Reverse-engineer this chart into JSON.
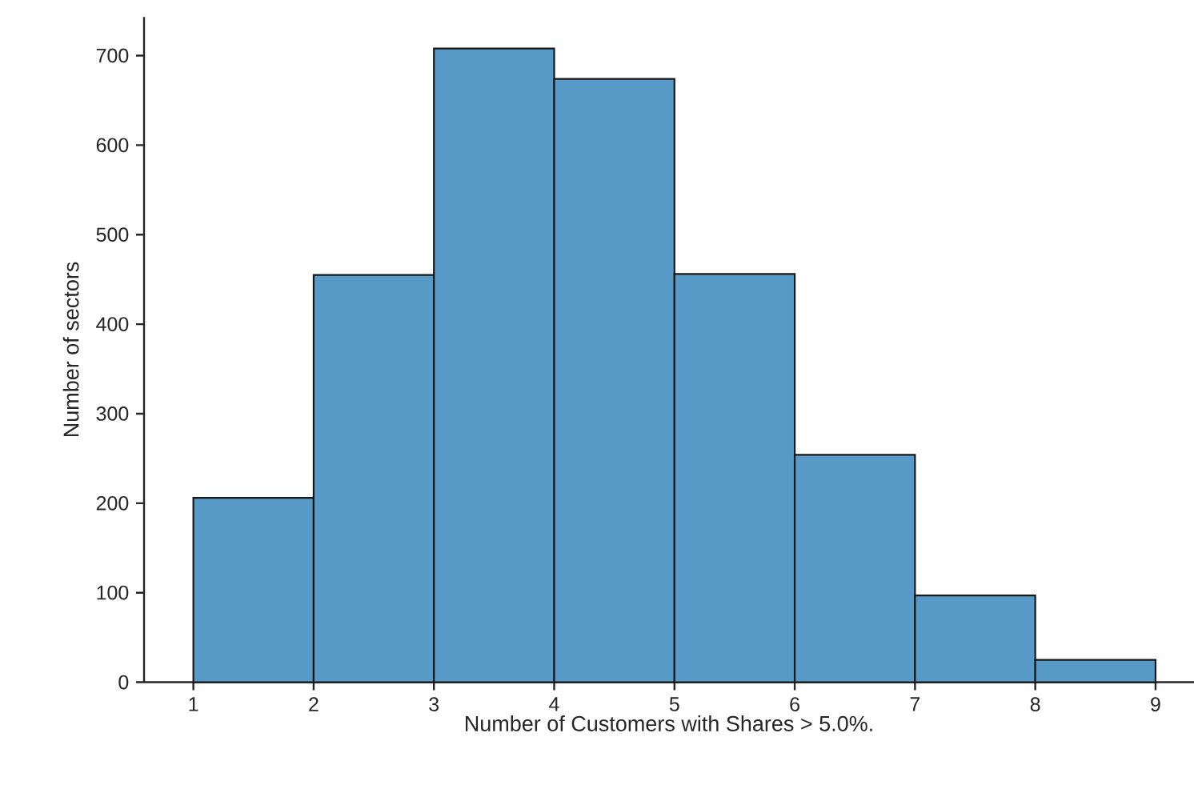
{
  "chart_data": {
    "type": "histogram",
    "xlabel": "Number of Customers with Shares > 5.0%.",
    "ylabel": "Number of sectors",
    "bins": [
      1,
      2,
      3,
      4,
      5,
      6,
      7,
      8,
      9
    ],
    "values": [
      206,
      455,
      708,
      674,
      456,
      254,
      97,
      25
    ],
    "color": "#5799c7",
    "xlim": [
      0.59,
      9.32
    ],
    "xticks": [
      1,
      2,
      3,
      4,
      5,
      6,
      7,
      8,
      9
    ],
    "ylim": [
      0,
      743
    ],
    "yticks": [
      0,
      100,
      200,
      300,
      400,
      500,
      600,
      700
    ],
    "grid": false
  }
}
